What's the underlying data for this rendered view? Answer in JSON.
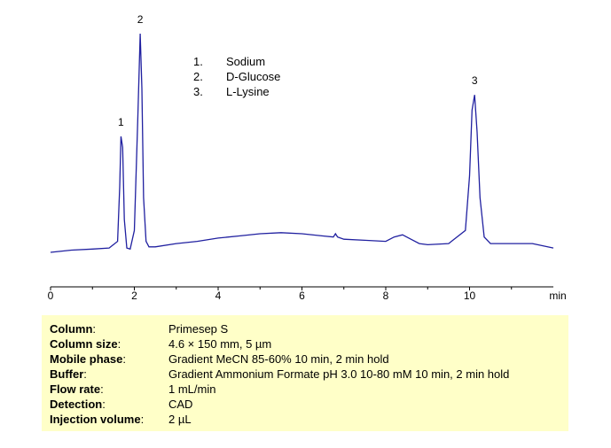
{
  "chart_data": {
    "type": "line",
    "xlabel": "",
    "ylabel": "",
    "x_unit": "min",
    "xlim": [
      0,
      12
    ],
    "x_ticks": [
      0,
      2,
      4,
      6,
      8,
      10
    ],
    "x_tick_labels": [
      "0",
      "2",
      "4",
      "6",
      "8",
      "10"
    ],
    "baseline_level": 0.02,
    "series": [
      {
        "color": "#2020a0",
        "x": [
          0.0,
          0.5,
          1.0,
          1.4,
          1.6,
          1.65,
          1.68,
          1.72,
          1.76,
          1.82,
          1.9,
          2.0,
          2.08,
          2.14,
          2.18,
          2.22,
          2.28,
          2.35,
          2.5,
          3.0,
          3.5,
          4.0,
          4.5,
          5.0,
          5.5,
          6.0,
          6.5,
          6.75,
          6.8,
          6.85,
          7.0,
          7.5,
          8.0,
          8.2,
          8.4,
          8.6,
          8.8,
          9.0,
          9.5,
          9.9,
          10.0,
          10.06,
          10.12,
          10.18,
          10.25,
          10.35,
          10.5,
          11.0,
          11.5,
          12.0
        ],
        "y": [
          0.0,
          0.01,
          0.015,
          0.02,
          0.05,
          0.3,
          0.53,
          0.48,
          0.15,
          0.02,
          0.015,
          0.1,
          0.6,
          1.0,
          0.75,
          0.25,
          0.05,
          0.025,
          0.025,
          0.04,
          0.05,
          0.065,
          0.075,
          0.085,
          0.09,
          0.085,
          0.075,
          0.07,
          0.085,
          0.07,
          0.06,
          0.055,
          0.05,
          0.07,
          0.08,
          0.06,
          0.04,
          0.035,
          0.04,
          0.1,
          0.35,
          0.65,
          0.72,
          0.55,
          0.25,
          0.07,
          0.04,
          0.04,
          0.04,
          0.02
        ]
      }
    ],
    "peak_labels": [
      {
        "label": "1",
        "x": 1.68,
        "y": 0.53
      },
      {
        "label": "2",
        "x": 2.14,
        "y": 1.0
      },
      {
        "label": "3",
        "x": 10.12,
        "y": 0.72
      }
    ],
    "grid": false
  },
  "legend": [
    {
      "num": "1.",
      "name": "Sodium"
    },
    {
      "num": "2.",
      "name": "D-Glucose"
    },
    {
      "num": "3.",
      "name": "L-Lysine"
    }
  ],
  "conditions": [
    {
      "key": "Column",
      "val": "Primesep S"
    },
    {
      "key": "Column size",
      "val": "4.6 × 150 mm, 5 µm"
    },
    {
      "key": "Mobile phase",
      "val": "Gradient MeCN 85-60% 10 min, 2 min hold"
    },
    {
      "key": "Buffer",
      "val": "Gradient Ammonium  Formate  pH 3.0 10-80 mM 10 min, 2 min hold"
    },
    {
      "key": "Flow rate",
      "val": "1 mL/min"
    },
    {
      "key": "Detection",
      "val": "CAD"
    },
    {
      "key": "Injection volume",
      "val": "2 µL"
    }
  ]
}
